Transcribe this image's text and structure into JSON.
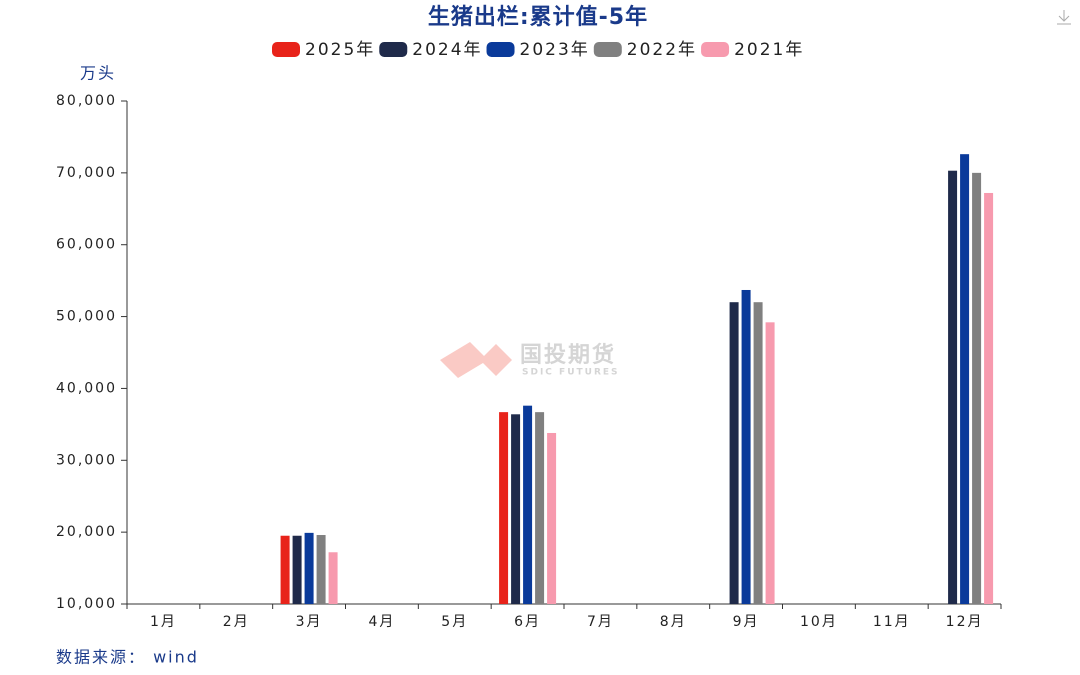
{
  "chart_data": {
    "type": "bar",
    "title": "生猪出栏:累计值-5年",
    "y_label": "万头",
    "source": "数据来源： wind",
    "watermark": {
      "name": "国投期货",
      "sub": "SDIC FUTURES"
    },
    "categories": [
      "1月",
      "2月",
      "3月",
      "4月",
      "5月",
      "6月",
      "7月",
      "8月",
      "9月",
      "10月",
      "11月",
      "12月"
    ],
    "series": [
      {
        "name": "2025年",
        "color": "#e8231a",
        "values": [
          null,
          null,
          19500,
          null,
          null,
          36700,
          null,
          null,
          null,
          null,
          null,
          null
        ]
      },
      {
        "name": "2024年",
        "color": "#1f2a4a",
        "values": [
          null,
          null,
          19500,
          null,
          null,
          36400,
          null,
          null,
          52000,
          null,
          null,
          70300
        ]
      },
      {
        "name": "2023年",
        "color": "#0a3a9a",
        "values": [
          null,
          null,
          19900,
          null,
          null,
          37600,
          null,
          null,
          53700,
          null,
          null,
          72600
        ]
      },
      {
        "name": "2022年",
        "color": "#808080",
        "values": [
          null,
          null,
          19600,
          null,
          null,
          36700,
          null,
          null,
          52000,
          null,
          null,
          70000
        ]
      },
      {
        "name": "2021年",
        "color": "#f79aae",
        "values": [
          null,
          null,
          17200,
          null,
          null,
          33800,
          null,
          null,
          49200,
          null,
          null,
          67200
        ]
      }
    ],
    "ylim": [
      10000,
      80000
    ],
    "yticks": [
      {
        "value": 10000,
        "label": "10,000"
      },
      {
        "value": 20000,
        "label": "20,000"
      },
      {
        "value": 30000,
        "label": "30,000"
      },
      {
        "value": 40000,
        "label": "40,000"
      },
      {
        "value": 50000,
        "label": "50,000"
      },
      {
        "value": 60000,
        "label": "60,000"
      },
      {
        "value": 70000,
        "label": "70,000"
      },
      {
        "value": 80000,
        "label": "80,000"
      }
    ]
  }
}
